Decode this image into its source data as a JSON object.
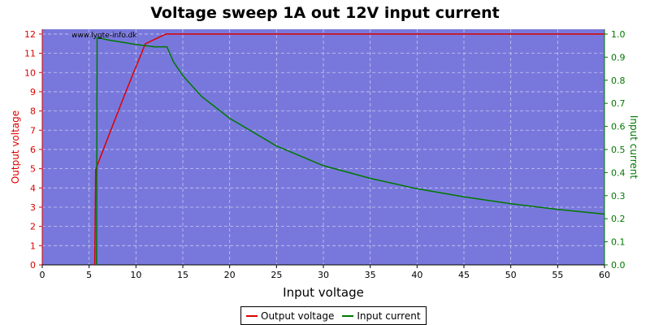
{
  "chart_data": {
    "type": "line",
    "title": "Voltage sweep 1A out 12V input current",
    "watermark": "www.lygte-info.dk",
    "xlabel": "Input voltage",
    "ylabel_left": "Output voltage",
    "ylabel_right": "Input current",
    "xlim": [
      0,
      60
    ],
    "ylim_left": [
      0,
      12.25
    ],
    "ylim_right": [
      0,
      1.021
    ],
    "x_ticks": [
      "0",
      "5",
      "10",
      "15",
      "20",
      "25",
      "30",
      "35",
      "40",
      "45",
      "50",
      "55",
      "60"
    ],
    "y_left_ticks": [
      "0",
      "1",
      "2",
      "3",
      "4",
      "5",
      "6",
      "7",
      "8",
      "9",
      "10",
      "11",
      "12"
    ],
    "y_right_ticks": [
      "0.0",
      "0.1",
      "0.2",
      "0.3",
      "0.4",
      "0.5",
      "0.6",
      "0.7",
      "0.8",
      "0.9",
      "1.0"
    ],
    "grid": true,
    "legend_position": "bottom-center",
    "background_color": "#7878dc",
    "series": [
      {
        "name": "Output voltage",
        "axis": "left",
        "color": "#dd0000",
        "points": [
          [
            5.6,
            0
          ],
          [
            5.7,
            4.95
          ],
          [
            7,
            6.6
          ],
          [
            9,
            9.1
          ],
          [
            11,
            11.5
          ],
          [
            13.2,
            12
          ],
          [
            20,
            12
          ],
          [
            30,
            12
          ],
          [
            40,
            12
          ],
          [
            50,
            12
          ],
          [
            60,
            12
          ]
        ]
      },
      {
        "name": "Input current",
        "axis": "right",
        "color": "#007700",
        "points": [
          [
            5.8,
            0
          ],
          [
            5.85,
            0.985
          ],
          [
            7,
            0.975
          ],
          [
            10,
            0.955
          ],
          [
            12,
            0.945
          ],
          [
            13.3,
            0.945
          ],
          [
            14,
            0.88
          ],
          [
            15,
            0.82
          ],
          [
            17,
            0.73
          ],
          [
            20,
            0.635
          ],
          [
            25,
            0.515
          ],
          [
            30,
            0.43
          ],
          [
            35,
            0.375
          ],
          [
            40,
            0.33
          ],
          [
            45,
            0.295
          ],
          [
            50,
            0.265
          ],
          [
            55,
            0.24
          ],
          [
            60,
            0.22
          ]
        ]
      }
    ]
  }
}
